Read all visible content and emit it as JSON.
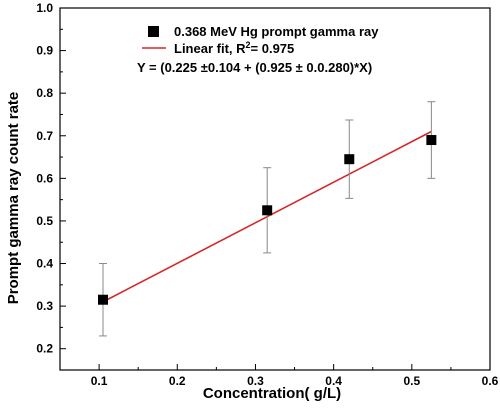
{
  "chart_data": {
    "type": "scatter",
    "xlabel": "Concentration( g/L)",
    "ylabel": "Prompt gamma ray count rate",
    "xlim": [
      0.05,
      0.6
    ],
    "ylim": [
      0.15,
      1.0
    ],
    "xticks": [
      "0.1",
      "0.2",
      "0.3",
      "0.4",
      "0.5",
      "0.6"
    ],
    "yticks": [
      "0.2",
      "0.3",
      "0.4",
      "0.5",
      "0.6",
      "0.7",
      "0.8",
      "0.9",
      "1.0"
    ],
    "grid": false,
    "legend_position": "top",
    "series": [
      {
        "name": "0.368 MeV Hg prompt gamma ray",
        "marker": "square",
        "color": "#000000",
        "x": [
          0.105,
          0.315,
          0.42,
          0.525
        ],
        "y": [
          0.315,
          0.525,
          0.645,
          0.69
        ],
        "error": [
          0.085,
          0.1,
          0.092,
          0.09
        ]
      }
    ],
    "fit": {
      "label": "Linear fit, R",
      "label_sup": "2",
      "label_end": "= 0.975",
      "equation": "Y = (0.225 ±0.104 + (0.925 ± 0.0.280)*X)",
      "color": "#d62728",
      "x": [
        0.105,
        0.525
      ],
      "y": [
        0.31,
        0.71
      ]
    }
  }
}
